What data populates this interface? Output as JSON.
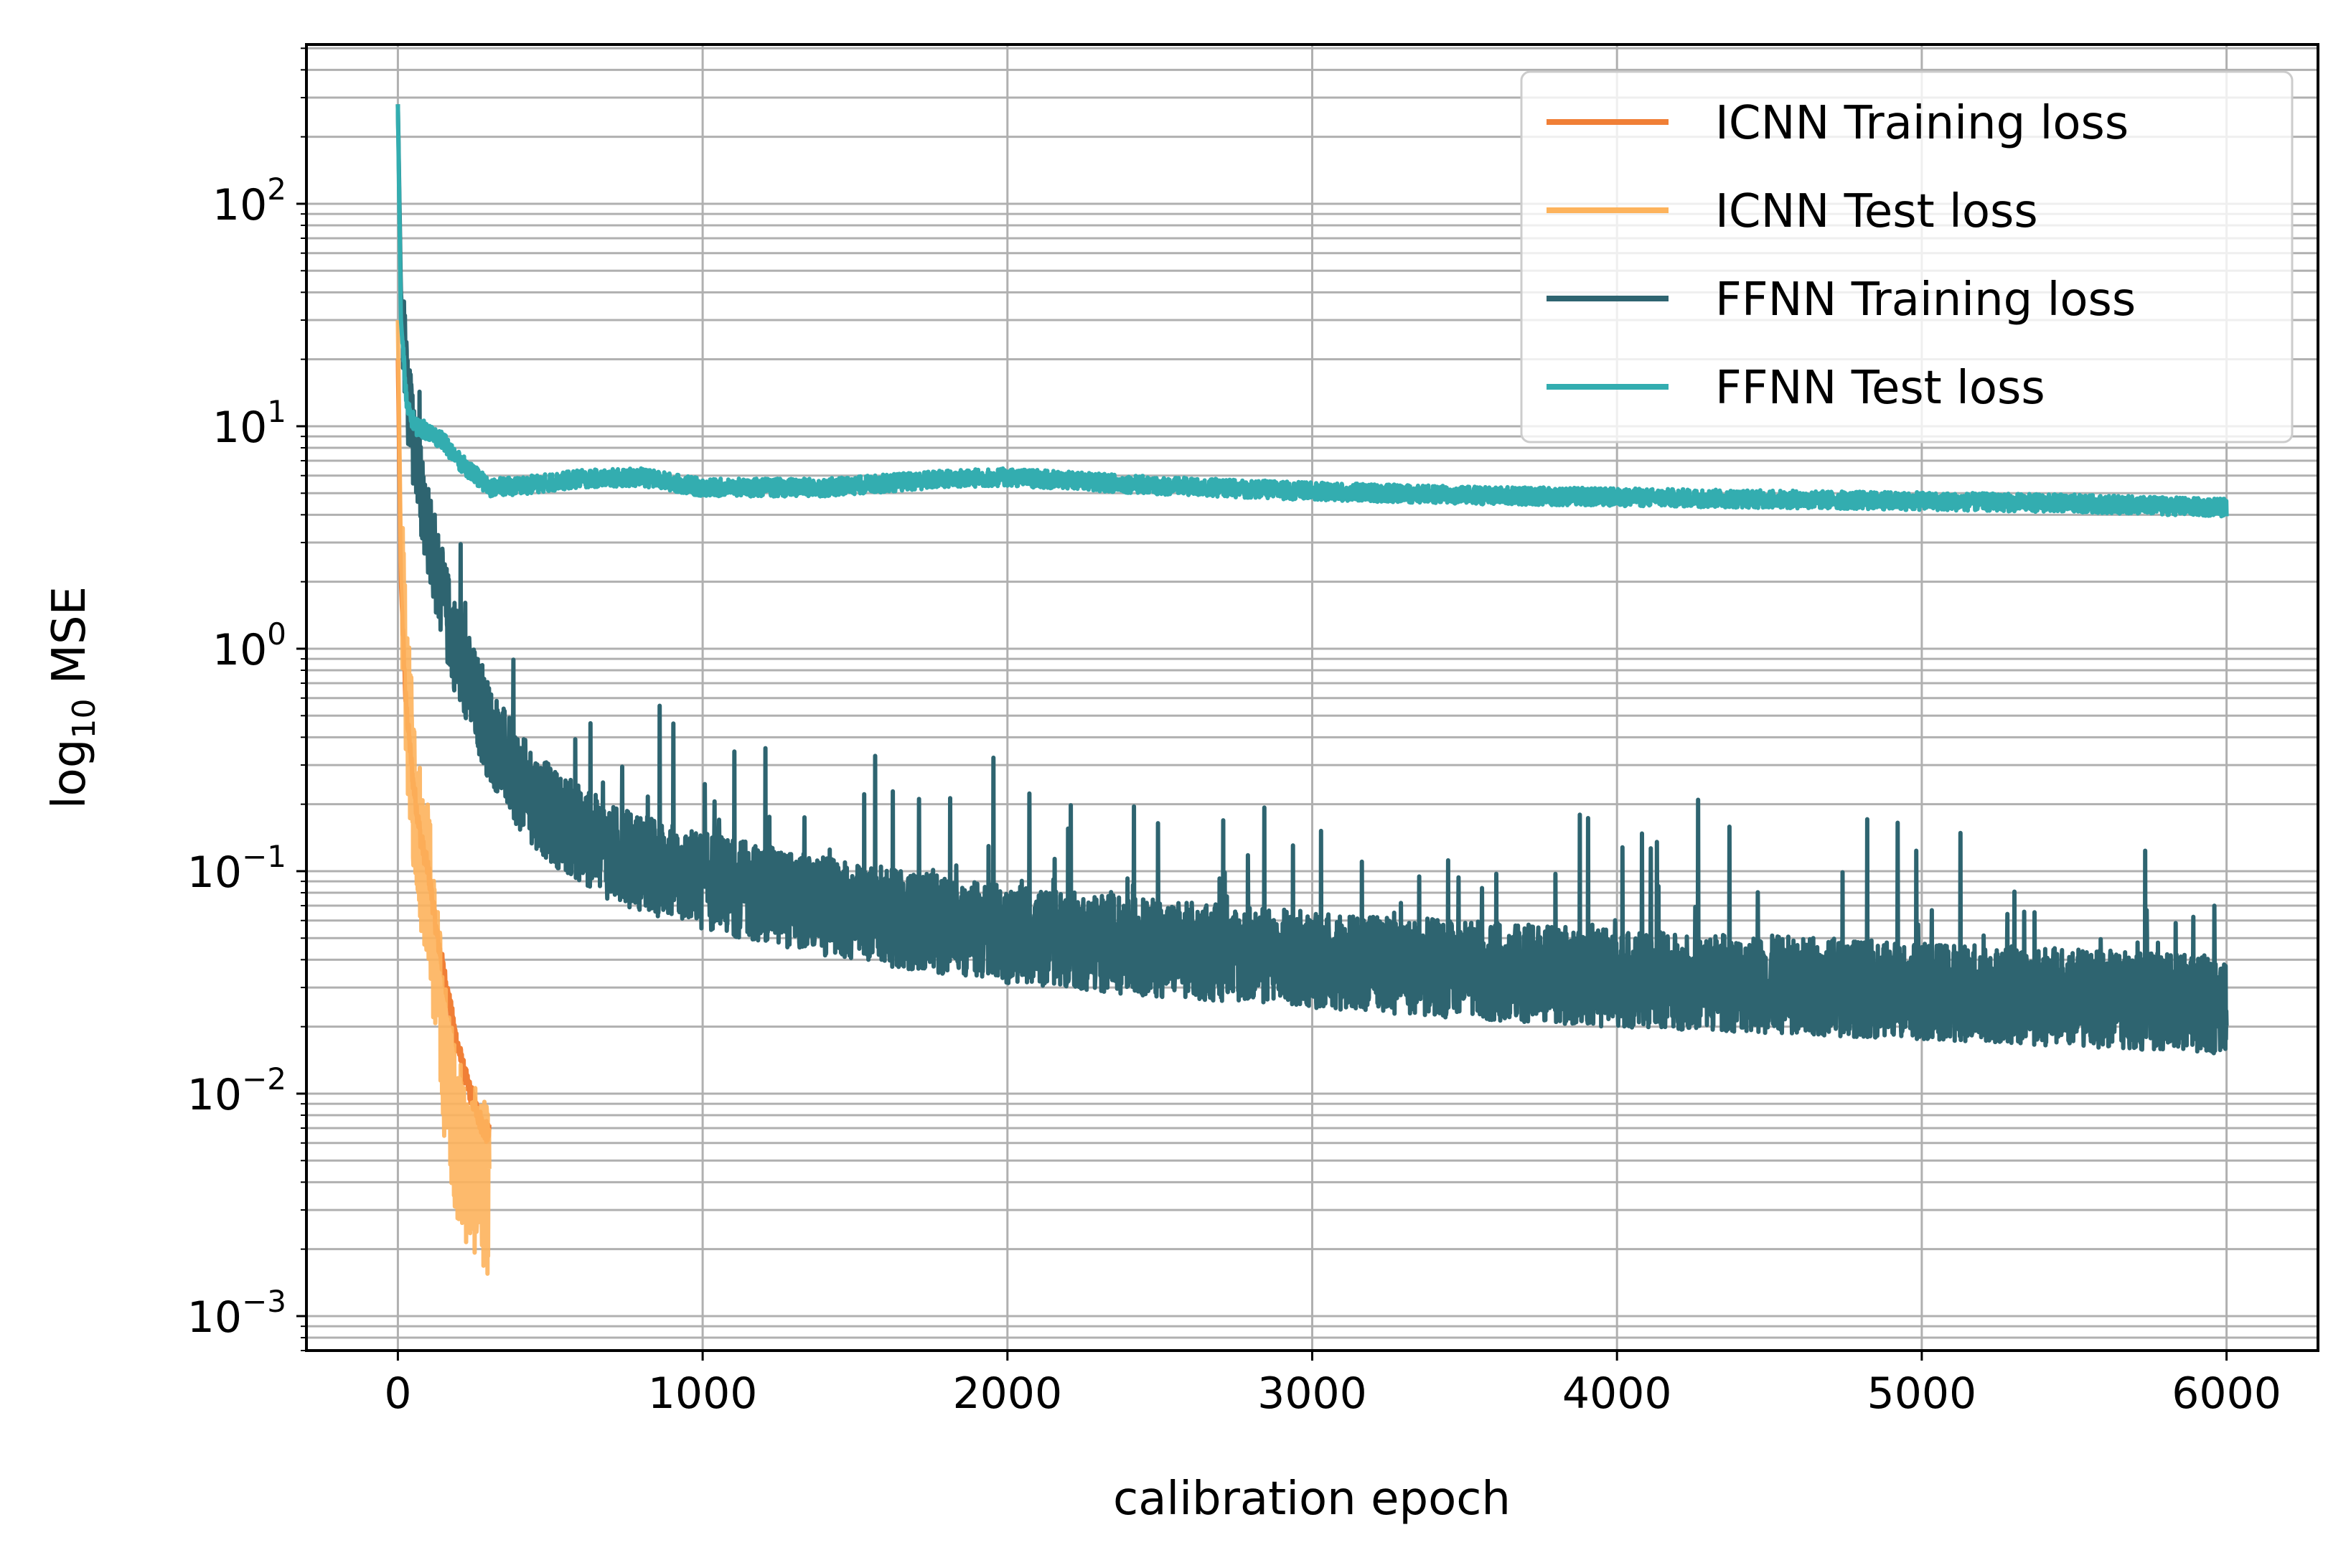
{
  "chart_data": {
    "type": "line",
    "title": "",
    "xlabel": "calibration epoch",
    "ylabel_main": "log",
    "ylabel_sub": "10",
    "ylabel_tail": " MSE",
    "y_scale": "log",
    "xlim": [
      -300,
      6300
    ],
    "ylim": [
      0.0007,
      520
    ],
    "grid": "major and minor",
    "legend_position": "top-right",
    "x_ticks": [
      {
        "value": 0,
        "label": "0"
      },
      {
        "value": 1000,
        "label": "1000"
      },
      {
        "value": 2000,
        "label": "2000"
      },
      {
        "value": 3000,
        "label": "3000"
      },
      {
        "value": 4000,
        "label": "4000"
      },
      {
        "value": 5000,
        "label": "5000"
      },
      {
        "value": 6000,
        "label": "6000"
      }
    ],
    "y_ticks": [
      {
        "value": 0.001,
        "base": "10",
        "exp": "−3"
      },
      {
        "value": 0.01,
        "base": "10",
        "exp": "−2"
      },
      {
        "value": 0.1,
        "base": "10",
        "exp": "−1"
      },
      {
        "value": 1,
        "base": "10",
        "exp": "0"
      },
      {
        "value": 10,
        "base": "10",
        "exp": "1"
      },
      {
        "value": 100,
        "base": "10",
        "exp": "2"
      }
    ],
    "series": [
      {
        "name": "ICNN Training loss",
        "color": "#f07f36",
        "x": [
          0,
          10,
          25,
          50,
          75,
          100,
          130,
          160,
          190,
          220,
          250,
          280,
          300
        ],
        "y": [
          20,
          2.0,
          0.6,
          0.25,
          0.14,
          0.1,
          0.05,
          0.03,
          0.018,
          0.012,
          0.009,
          0.007,
          0.0065
        ],
        "noise": 0.05
      },
      {
        "name": "ICNN Test loss",
        "color": "#fdb35c",
        "x": [
          0,
          10,
          25,
          50,
          75,
          100,
          130,
          160,
          190,
          220,
          250,
          280,
          300
        ],
        "y": [
          30,
          2.5,
          0.7,
          0.25,
          0.13,
          0.09,
          0.03,
          0.012,
          0.007,
          0.005,
          0.0045,
          0.004,
          0.0035
        ],
        "noise": 0.38
      },
      {
        "name": "FFNN Training loss",
        "color": "#2e6470",
        "x": [
          0,
          10,
          30,
          60,
          100,
          150,
          200,
          300,
          400,
          500,
          700,
          1000,
          1500,
          2000,
          2500,
          3000,
          3500,
          4000,
          4500,
          5000,
          5500,
          6000
        ],
        "y": [
          280,
          40,
          14,
          7,
          3.5,
          1.6,
          0.9,
          0.42,
          0.25,
          0.18,
          0.12,
          0.09,
          0.065,
          0.052,
          0.045,
          0.04,
          0.036,
          0.033,
          0.031,
          0.029,
          0.027,
          0.025
        ],
        "noise": 0.22
      },
      {
        "name": "FFNN Test loss",
        "color": "#33adb0",
        "x": [
          0,
          10,
          30,
          60,
          100,
          150,
          200,
          300,
          400,
          600,
          800,
          1000,
          1400,
          1800,
          2000,
          2500,
          3000,
          3500,
          4000,
          4500,
          5000,
          5500,
          6000
        ],
        "y": [
          280,
          30,
          12,
          10,
          9.5,
          8.5,
          7.0,
          5.3,
          5.4,
          5.8,
          5.9,
          5.3,
          5.3,
          5.8,
          5.9,
          5.4,
          5.1,
          4.9,
          4.8,
          4.7,
          4.6,
          4.5,
          4.3
        ],
        "noise": 0.04
      }
    ]
  }
}
